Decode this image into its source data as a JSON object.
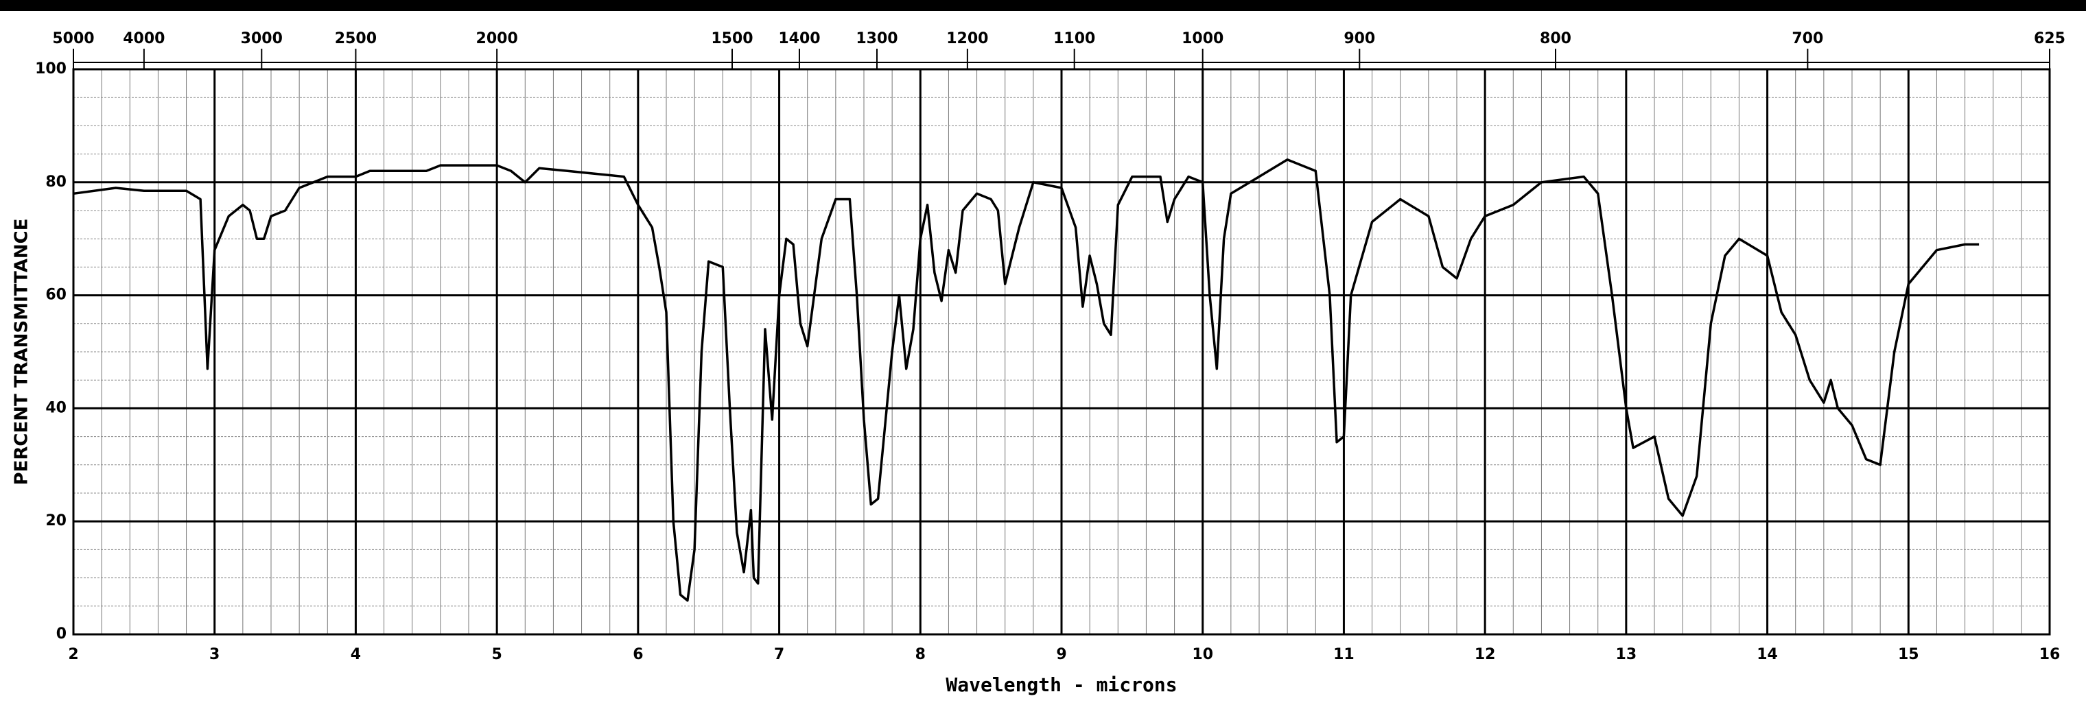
{
  "chart_data": {
    "type": "line",
    "x_label": "Wavelength - microns",
    "y_label": "PERCENT TRANSMITTANCE",
    "xlim": [
      2,
      16
    ],
    "xticks": [
      2,
      3,
      4,
      5,
      6,
      7,
      8,
      9,
      10,
      11,
      12,
      13,
      14,
      15,
      16
    ],
    "ylim": [
      0,
      100
    ],
    "yticks": [
      0,
      20,
      40,
      60,
      80,
      100
    ],
    "x2ticks": [
      5000,
      4000,
      3000,
      2500,
      2000,
      1500,
      1400,
      1300,
      1200,
      1100,
      1000,
      900,
      800,
      700,
      625
    ],
    "x2scale": "reciprocal",
    "grid": true,
    "x": [
      2.0,
      2.3,
      2.5,
      2.8,
      2.9,
      2.95,
      3.0,
      3.1,
      3.2,
      3.25,
      3.3,
      3.35,
      3.4,
      3.5,
      3.6,
      3.8,
      4.0,
      4.1,
      4.5,
      4.6,
      5.0,
      5.1,
      5.2,
      5.3,
      5.5,
      5.9,
      6.0,
      6.1,
      6.15,
      6.2,
      6.25,
      6.3,
      6.35,
      6.4,
      6.45,
      6.5,
      6.6,
      6.65,
      6.7,
      6.75,
      6.8,
      6.82,
      6.85,
      6.9,
      6.95,
      7.0,
      7.05,
      7.1,
      7.15,
      7.2,
      7.3,
      7.4,
      7.5,
      7.55,
      7.6,
      7.65,
      7.7,
      7.8,
      7.85,
      7.9,
      7.95,
      8.0,
      8.05,
      8.1,
      8.15,
      8.2,
      8.25,
      8.3,
      8.4,
      8.5,
      8.55,
      8.6,
      8.7,
      8.8,
      9.0,
      9.1,
      9.15,
      9.2,
      9.25,
      9.3,
      9.35,
      9.4,
      9.5,
      9.7,
      9.75,
      9.8,
      9.9,
      10.0,
      10.05,
      10.1,
      10.15,
      10.2,
      10.4,
      10.6,
      10.8,
      10.9,
      10.95,
      11.0,
      11.05,
      11.2,
      11.4,
      11.6,
      11.7,
      11.8,
      11.9,
      12.0,
      12.2,
      12.4,
      12.7,
      12.8,
      12.9,
      13.0,
      13.05,
      13.2,
      13.3,
      13.4,
      13.5,
      13.6,
      13.7,
      13.8,
      14.0,
      14.1,
      14.2,
      14.3,
      14.4,
      14.45,
      14.5,
      14.6,
      14.7,
      14.8,
      14.9,
      15.0,
      15.2,
      15.4,
      15.5
    ],
    "series": [
      {
        "color": "#000000",
        "values": [
          78,
          79,
          78.5,
          78.5,
          77,
          47,
          68,
          74,
          76,
          75,
          70,
          70,
          74,
          75,
          79,
          81,
          81,
          82,
          82,
          83,
          83,
          82,
          80,
          82.5,
          82,
          81,
          76,
          72,
          65,
          57,
          20,
          7,
          6,
          15,
          50,
          66,
          65,
          40,
          18,
          11,
          22,
          10,
          9,
          54,
          38,
          60,
          70,
          69,
          55,
          51,
          70,
          77,
          77,
          60,
          38,
          23,
          24,
          50,
          60,
          47,
          54,
          70,
          76,
          64,
          59,
          68,
          64,
          75,
          78,
          77,
          75,
          62,
          72,
          80,
          79,
          72,
          58,
          67,
          62,
          55,
          53,
          76,
          81,
          81,
          73,
          77,
          81,
          80,
          60,
          47,
          70,
          78,
          81,
          84,
          82,
          60,
          34,
          35,
          60,
          73,
          77,
          74,
          65,
          63,
          70,
          74,
          76,
          80,
          81,
          78,
          60,
          40,
          33,
          35,
          24,
          21,
          28,
          55,
          67,
          70,
          67,
          57,
          53,
          45,
          41,
          45,
          40,
          37,
          31,
          30,
          50,
          62,
          68,
          69,
          69
        ]
      }
    ]
  }
}
